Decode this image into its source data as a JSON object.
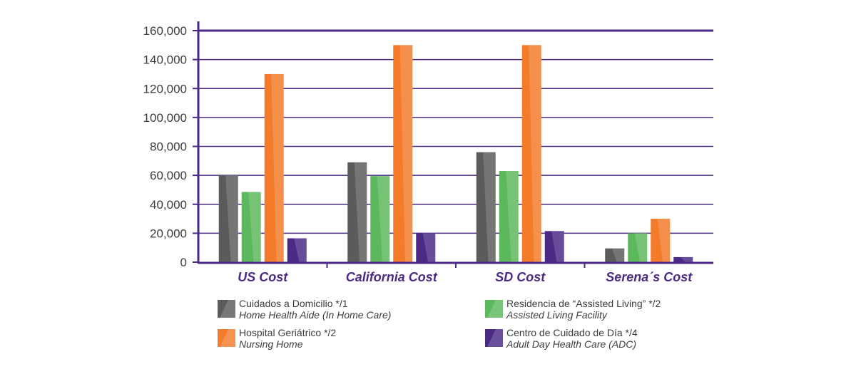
{
  "chart_data": {
    "type": "bar",
    "categories": [
      "US Cost",
      "California Cost",
      "SD Cost",
      "Serena´s Cost"
    ],
    "series": [
      {
        "name": "Cuidados a Domicilio */1 / Home Health Aide (In Home Care)",
        "color": "#5b5b5b",
        "values": [
          60000,
          69000,
          76000,
          9500
        ]
      },
      {
        "name": "Residencia de “Assisted Living” */2 / Assisted Living Facility",
        "color": "#5cb85c",
        "values": [
          48500,
          59500,
          63000,
          20000
        ]
      },
      {
        "name": "Hospital Geriátrico */2 / Nursing Home",
        "color": "#f47b2a",
        "values": [
          130000,
          150000,
          150000,
          30000
        ]
      },
      {
        "name": "Centro de Cuidado de Día */4 / Adult Day Health Care (ADC)",
        "color": "#4b2a86",
        "values": [
          16500,
          20000,
          21500,
          3500
        ]
      }
    ],
    "yticks": [
      "0",
      "20,000",
      "40,000",
      "60,000",
      "80,000",
      "100,000",
      "120,000",
      "140,000",
      "160,000"
    ],
    "ylim": [
      0,
      160000
    ],
    "title": "",
    "xlabel": "",
    "ylabel": "",
    "grid": true,
    "legend_position": "bottom"
  },
  "legend": [
    {
      "line1": "Cuidados a Domicilio */1",
      "line2": "Home Health Aide (In Home Care)",
      "color": "#5b5b5b"
    },
    {
      "line1": "Residencia de “Assisted Living” */2",
      "line2": "Assisted Living Facility",
      "color": "#5cb85c"
    },
    {
      "line1": "Hospital Geriátrico */2",
      "line2": "Nursing Home",
      "color": "#f47b2a"
    },
    {
      "line1": "Centro de Cuidado de Día */4",
      "line2": "Adult Day Health Care (ADC)",
      "color": "#4b2a86"
    }
  ],
  "colors": {
    "axis": "#4b2a86",
    "grid": "#4b2a86"
  }
}
